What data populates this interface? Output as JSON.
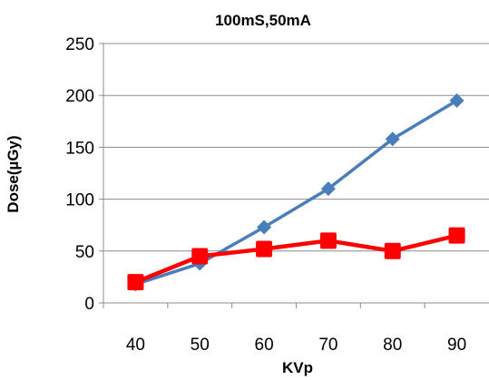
{
  "chart_data": {
    "type": "line",
    "title": "100mS,50mA",
    "xlabel": "KVp",
    "ylabel": "Dose(µGy)",
    "categories": [
      "40",
      "50",
      "60",
      "70",
      "80",
      "90"
    ],
    "ylim": [
      0,
      250
    ],
    "yticks": [
      "0",
      "50",
      "100",
      "150",
      "200",
      "250"
    ],
    "grid": "horizontal",
    "legend": "none",
    "series": [
      {
        "values": [
          18,
          38,
          73,
          110,
          158,
          195
        ],
        "color": "#4a7ebb",
        "marker": "diamond"
      },
      {
        "values": [
          20,
          45,
          52,
          60,
          50,
          65
        ],
        "color": "#ff0000",
        "marker": "square"
      }
    ]
  }
}
